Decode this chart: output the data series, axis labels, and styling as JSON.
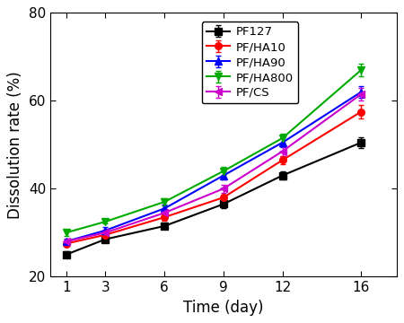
{
  "x": [
    1,
    3,
    6,
    9,
    12,
    16
  ],
  "series": [
    {
      "label": "PF127",
      "y": [
        25.0,
        28.5,
        31.5,
        36.5,
        43.0,
        50.5
      ],
      "yerr": [
        0.7,
        0.5,
        0.6,
        0.9,
        0.9,
        1.2
      ],
      "color": "#000000",
      "marker": "s"
    },
    {
      "label": "PF/HA10",
      "y": [
        27.5,
        29.5,
        33.5,
        38.0,
        46.5,
        57.5
      ],
      "yerr": [
        0.6,
        0.6,
        0.7,
        0.7,
        0.9,
        1.5
      ],
      "color": "#ff0000",
      "marker": "o"
    },
    {
      "label": "PF/HA90",
      "y": [
        28.0,
        30.5,
        35.5,
        43.0,
        50.5,
        62.0
      ],
      "yerr": [
        0.5,
        0.7,
        0.9,
        0.9,
        1.1,
        1.4
      ],
      "color": "#0000ff",
      "marker": "^"
    },
    {
      "label": "PF/HA800",
      "y": [
        30.0,
        32.5,
        37.0,
        44.0,
        51.5,
        67.0
      ],
      "yerr": [
        0.7,
        0.5,
        0.9,
        0.9,
        1.1,
        1.4
      ],
      "color": "#00aa00",
      "marker": "v"
    },
    {
      "label": "PF/CS",
      "y": [
        28.0,
        30.0,
        34.5,
        40.0,
        48.5,
        61.5
      ],
      "yerr": [
        0.6,
        0.6,
        0.7,
        0.9,
        1.1,
        1.4
      ],
      "color": "#cc00cc",
      "marker": "<"
    }
  ],
  "xlabel": "Time (day)",
  "ylabel": "Dissolution rate (%)",
  "xlim": [
    0.2,
    17.8
  ],
  "ylim": [
    20,
    80
  ],
  "yticks": [
    20,
    40,
    60,
    80
  ],
  "xticks": [
    1,
    3,
    6,
    9,
    12,
    16
  ],
  "markersize": 5.5,
  "linewidth": 1.5,
  "capsize": 2.5,
  "legend_fontsize": 9.5,
  "axis_fontsize": 12,
  "tick_fontsize": 11,
  "figure_width": 4.5,
  "figure_height": 3.6,
  "dpi": 100
}
